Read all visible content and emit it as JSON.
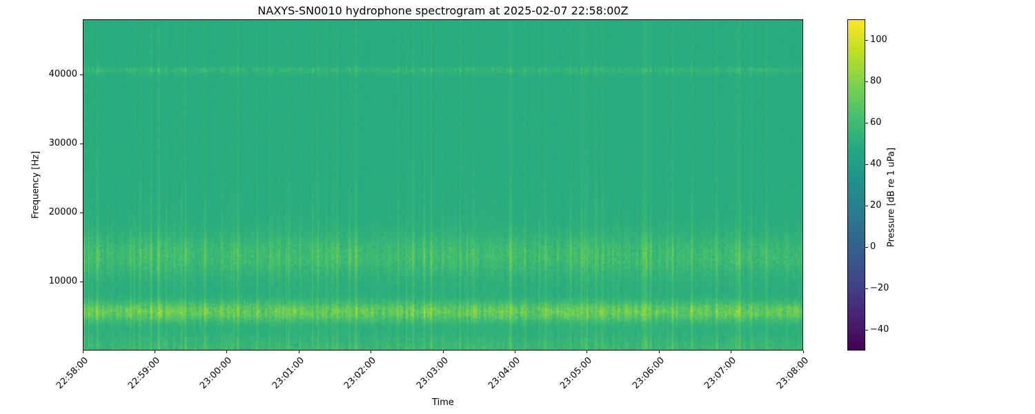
{
  "chart_data": {
    "type": "heatmap",
    "title": "NAXYS-SN0010 hydrophone spectrogram at 2025-02-07 22:58:00Z",
    "xlabel": "Time",
    "ylabel": "Frequency [Hz]",
    "colorbar_label": "Pressure [dB re 1 uPa]",
    "colormap": "viridis",
    "legend_position": "right-colorbar",
    "grid": false,
    "x_tick_labels": [
      "22:58:00",
      "22:59:00",
      "23:00:00",
      "23:01:00",
      "23:02:00",
      "23:03:00",
      "23:04:00",
      "23:05:00",
      "23:06:00",
      "23:07:00",
      "23:08:00"
    ],
    "y_ticks": [
      {
        "value": 10000,
        "label": "10000"
      },
      {
        "value": 20000,
        "label": "20000"
      },
      {
        "value": 30000,
        "label": "30000"
      },
      {
        "value": 40000,
        "label": "40000"
      }
    ],
    "y_range_hz": [
      0,
      48000
    ],
    "colorbar_ticks": [
      {
        "value": 100,
        "label": "100"
      },
      {
        "value": 80,
        "label": "80"
      },
      {
        "value": 60,
        "label": "60"
      },
      {
        "value": 40,
        "label": "40"
      },
      {
        "value": 20,
        "label": "20"
      },
      {
        "value": 0,
        "label": "0"
      },
      {
        "value": -20,
        "label": "−20"
      },
      {
        "value": -40,
        "label": "−40"
      }
    ],
    "colorbar_range_db": [
      -50,
      110
    ],
    "background_level_db": 49,
    "features": [
      {
        "name": "strong-tonal-band",
        "center_hz": 5600,
        "sigma_hz": 1000,
        "gain_db": 28
      },
      {
        "name": "mid-frequency-band",
        "center_hz": 13800,
        "sigma_hz": 2000,
        "gain_db": 11
      },
      {
        "name": "narrow-line",
        "center_hz": 40600,
        "sigma_hz": 300,
        "gain_db": 7
      },
      {
        "name": "low-frequency-energy",
        "center_hz": 0,
        "sigma_hz": 1700,
        "gain_db": 9
      }
    ],
    "noise_seed": 1234
  }
}
